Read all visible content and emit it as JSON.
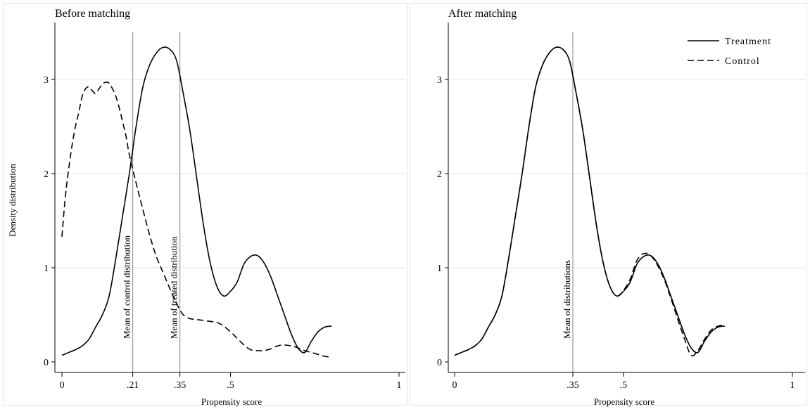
{
  "figure": {
    "ylabel": "Density distribution"
  },
  "legend": {
    "treatment": "Treatment",
    "control": "Control"
  },
  "chart_data": [
    {
      "type": "line",
      "title": "Before matching",
      "xlabel": "Propensity score",
      "ylabel": "Density distribution",
      "xlim": [
        0,
        1
      ],
      "ylim": [
        0,
        3.5
      ],
      "xticks": [
        0,
        0.21,
        0.35,
        0.5,
        1
      ],
      "xtick_labels": [
        "0",
        ".21",
        ".35",
        ".5",
        "1"
      ],
      "yticks": [
        0,
        1,
        2,
        3
      ],
      "ytick_labels": [
        "0",
        "1",
        "2",
        "3"
      ],
      "grid": "horizontal",
      "vlines": [
        {
          "x": 0.21,
          "label": "Mean of control distribution"
        },
        {
          "x": 0.35,
          "label": "Mean of treated distribution"
        }
      ],
      "series": [
        {
          "name": "Treatment",
          "style": "solid",
          "x": [
            0.0,
            0.02,
            0.04,
            0.06,
            0.08,
            0.1,
            0.12,
            0.14,
            0.16,
            0.18,
            0.2,
            0.22,
            0.24,
            0.26,
            0.28,
            0.3,
            0.32,
            0.34,
            0.36,
            0.38,
            0.4,
            0.42,
            0.44,
            0.46,
            0.48,
            0.5,
            0.52,
            0.54,
            0.56,
            0.58,
            0.6,
            0.62,
            0.64,
            0.66,
            0.68,
            0.7,
            0.72,
            0.74,
            0.76,
            0.78,
            0.8
          ],
          "y": [
            0.07,
            0.1,
            0.13,
            0.17,
            0.24,
            0.37,
            0.5,
            0.7,
            1.1,
            1.55,
            2.0,
            2.5,
            2.92,
            3.15,
            3.28,
            3.34,
            3.32,
            3.2,
            2.85,
            2.45,
            1.95,
            1.45,
            1.05,
            0.8,
            0.7,
            0.75,
            0.85,
            1.04,
            1.12,
            1.13,
            1.05,
            0.9,
            0.7,
            0.5,
            0.3,
            0.15,
            0.1,
            0.22,
            0.32,
            0.37,
            0.38
          ]
        },
        {
          "name": "Control",
          "style": "dashed",
          "x": [
            0.0,
            0.01,
            0.02,
            0.03,
            0.04,
            0.05,
            0.06,
            0.07,
            0.08,
            0.09,
            0.1,
            0.11,
            0.12,
            0.13,
            0.14,
            0.15,
            0.16,
            0.17,
            0.18,
            0.19,
            0.2,
            0.22,
            0.24,
            0.26,
            0.28,
            0.3,
            0.32,
            0.34,
            0.36,
            0.38,
            0.4,
            0.42,
            0.44,
            0.46,
            0.48,
            0.5,
            0.52,
            0.54,
            0.56,
            0.58,
            0.6,
            0.62,
            0.64,
            0.66,
            0.68,
            0.7,
            0.72,
            0.74,
            0.76,
            0.78,
            0.8
          ],
          "y": [
            1.33,
            1.75,
            2.05,
            2.3,
            2.5,
            2.65,
            2.82,
            2.9,
            2.92,
            2.88,
            2.85,
            2.9,
            2.95,
            2.97,
            2.96,
            2.9,
            2.82,
            2.7,
            2.55,
            2.4,
            2.2,
            1.9,
            1.62,
            1.35,
            1.12,
            0.95,
            0.78,
            0.62,
            0.5,
            0.46,
            0.45,
            0.44,
            0.43,
            0.42,
            0.38,
            0.32,
            0.25,
            0.18,
            0.13,
            0.12,
            0.12,
            0.14,
            0.17,
            0.18,
            0.17,
            0.15,
            0.12,
            0.1,
            0.08,
            0.06,
            0.05
          ]
        }
      ]
    },
    {
      "type": "line",
      "title": "After matching",
      "xlabel": "Propensity score",
      "xlim": [
        0,
        1
      ],
      "ylim": [
        0,
        3.5
      ],
      "xticks": [
        0,
        0.35,
        0.5,
        1
      ],
      "xtick_labels": [
        "0",
        ".35",
        ".5",
        "1"
      ],
      "yticks": [
        0,
        1,
        2,
        3
      ],
      "ytick_labels": [
        "0",
        "1",
        "2",
        "3"
      ],
      "grid": "horizontal",
      "legend_position": "top-right",
      "vlines": [
        {
          "x": 0.35,
          "label": "Mean of distributions"
        }
      ],
      "series": [
        {
          "name": "Treatment",
          "style": "solid",
          "x": [
            0.0,
            0.02,
            0.04,
            0.06,
            0.08,
            0.1,
            0.12,
            0.14,
            0.16,
            0.18,
            0.2,
            0.22,
            0.24,
            0.26,
            0.28,
            0.3,
            0.32,
            0.34,
            0.36,
            0.38,
            0.4,
            0.42,
            0.44,
            0.46,
            0.48,
            0.5,
            0.52,
            0.54,
            0.56,
            0.58,
            0.6,
            0.62,
            0.64,
            0.66,
            0.68,
            0.7,
            0.72,
            0.74,
            0.76,
            0.78,
            0.8
          ],
          "y": [
            0.07,
            0.1,
            0.13,
            0.17,
            0.24,
            0.37,
            0.5,
            0.7,
            1.1,
            1.55,
            2.0,
            2.5,
            2.92,
            3.15,
            3.28,
            3.34,
            3.32,
            3.2,
            2.85,
            2.45,
            1.95,
            1.45,
            1.05,
            0.8,
            0.7,
            0.75,
            0.85,
            1.04,
            1.12,
            1.13,
            1.05,
            0.9,
            0.7,
            0.5,
            0.3,
            0.15,
            0.1,
            0.22,
            0.32,
            0.37,
            0.38
          ]
        },
        {
          "name": "Control",
          "style": "dashed",
          "x": [
            0.0,
            0.02,
            0.04,
            0.06,
            0.08,
            0.1,
            0.12,
            0.14,
            0.16,
            0.18,
            0.2,
            0.22,
            0.24,
            0.26,
            0.28,
            0.3,
            0.32,
            0.34,
            0.36,
            0.38,
            0.4,
            0.42,
            0.44,
            0.46,
            0.48,
            0.5,
            0.52,
            0.54,
            0.56,
            0.58,
            0.6,
            0.62,
            0.64,
            0.66,
            0.68,
            0.7,
            0.72,
            0.74,
            0.76,
            0.78,
            0.8
          ],
          "y": [
            0.07,
            0.1,
            0.13,
            0.17,
            0.24,
            0.37,
            0.5,
            0.7,
            1.1,
            1.55,
            2.0,
            2.5,
            2.92,
            3.15,
            3.28,
            3.34,
            3.32,
            3.2,
            2.85,
            2.45,
            1.95,
            1.45,
            1.05,
            0.8,
            0.7,
            0.76,
            0.88,
            1.08,
            1.15,
            1.13,
            1.03,
            0.88,
            0.68,
            0.46,
            0.25,
            0.07,
            0.12,
            0.24,
            0.34,
            0.38,
            0.39
          ]
        }
      ]
    }
  ]
}
